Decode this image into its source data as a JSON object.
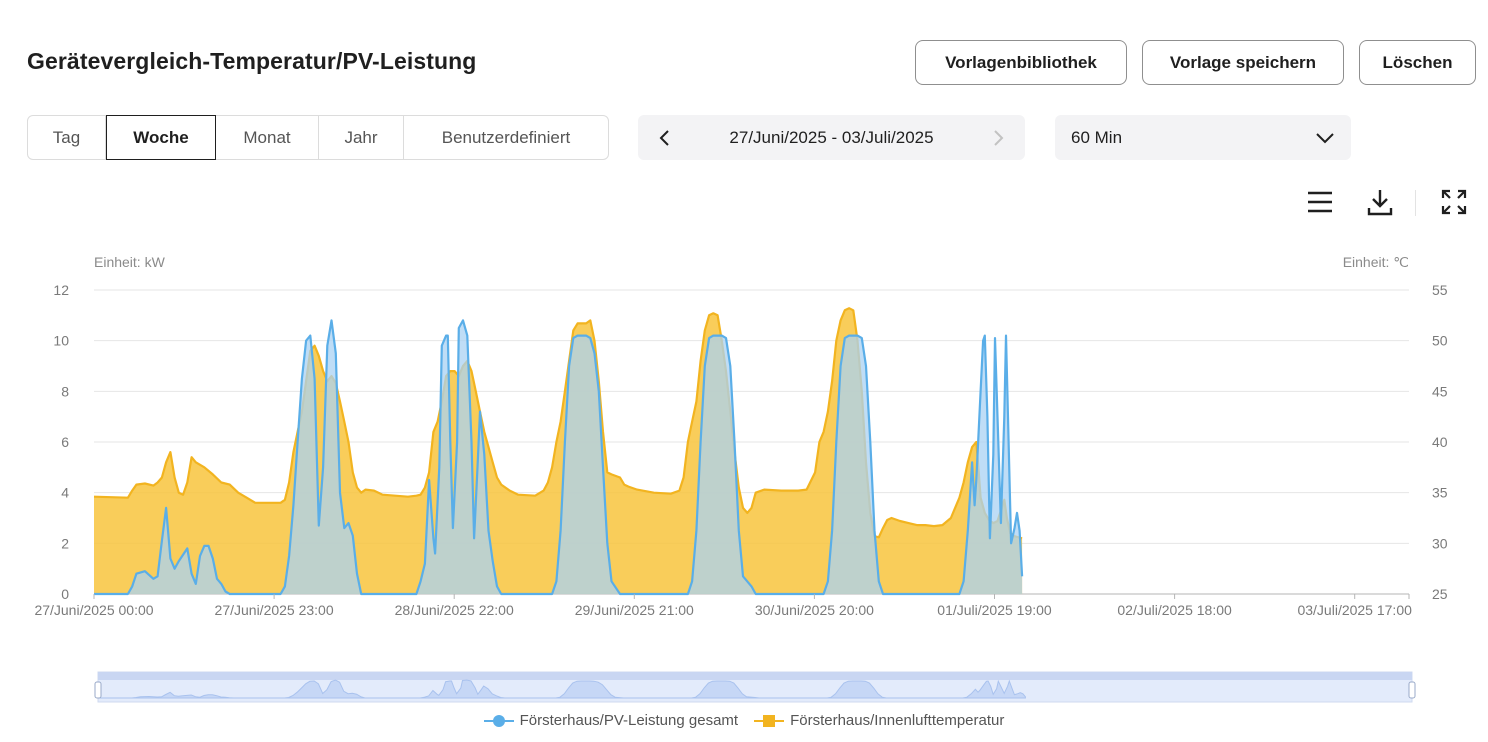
{
  "header": {
    "title": "Gerätevergleich-Temperatur/PV-Leistung",
    "buttons": {
      "library": "Vorlagenbibliothek",
      "save": "Vorlage speichern",
      "delete": "Löschen"
    }
  },
  "period_tabs": [
    {
      "label": "Tag",
      "active": false
    },
    {
      "label": "Woche",
      "active": true
    },
    {
      "label": "Monat",
      "active": false
    },
    {
      "label": "Jahr",
      "active": false
    },
    {
      "label": "Benutzerdefiniert",
      "active": false
    }
  ],
  "date_range": {
    "label": "27/Juni/2025 - 03/Juli/2025"
  },
  "interval": {
    "selected": "60 Min"
  },
  "toolbar": {
    "icons": [
      "menu-icon",
      "download-icon",
      "fullscreen-icon"
    ]
  },
  "chart_data": {
    "type": "area",
    "left_unit": "Einheit: kW",
    "right_unit": "Einheit: ℃",
    "left_axis": {
      "min": 0,
      "max": 12,
      "ticks": [
        0,
        2,
        4,
        6,
        8,
        10,
        12
      ]
    },
    "right_axis": {
      "min": 25,
      "max": 55,
      "ticks": [
        25,
        30,
        35,
        40,
        45,
        50,
        55
      ]
    },
    "x_range_hours": [
      0,
      155
    ],
    "x_tick_labels": [
      "27/Juni/2025 00:00",
      "27/Juni/2025 23:00",
      "28/Juni/2025 22:00",
      "29/Juni/2025 21:00",
      "30/Juni/2025 20:00",
      "01/Juli/2025 19:00",
      "02/Juli/2025 18:00",
      "03/Juli/2025 17:00"
    ],
    "grid": true,
    "legend_position": "bottom-center",
    "series": [
      {
        "name": "Försterhaus/PV-Leistung gesamt",
        "color": "#5aaee8",
        "fill": "#a9d2f3",
        "axis": "left",
        "points": [
          [
            0,
            0
          ],
          [
            4,
            0
          ],
          [
            4.5,
            0.3
          ],
          [
            5,
            0.8
          ],
          [
            6,
            0.9
          ],
          [
            7,
            0.6
          ],
          [
            7.5,
            0.7
          ],
          [
            8,
            2.1
          ],
          [
            8.5,
            3.4
          ],
          [
            9,
            1.4
          ],
          [
            9.5,
            1.0
          ],
          [
            10,
            1.3
          ],
          [
            11,
            1.8
          ],
          [
            11.5,
            0.8
          ],
          [
            12,
            0.4
          ],
          [
            12.5,
            1.5
          ],
          [
            13,
            1.9
          ],
          [
            13.5,
            1.9
          ],
          [
            14,
            1.4
          ],
          [
            14.5,
            0.6
          ],
          [
            15,
            0.4
          ],
          [
            15.5,
            0.1
          ],
          [
            16,
            0
          ],
          [
            22,
            0
          ],
          [
            22.5,
            0.3
          ],
          [
            23,
            1.5
          ],
          [
            23.5,
            3.5
          ],
          [
            24,
            6
          ],
          [
            24.5,
            8.5
          ],
          [
            25,
            10
          ],
          [
            25.5,
            10.2
          ],
          [
            26,
            8.5
          ],
          [
            26.5,
            2.7
          ],
          [
            27,
            5
          ],
          [
            27.5,
            9.8
          ],
          [
            28,
            10.8
          ],
          [
            28.5,
            9.5
          ],
          [
            29,
            4
          ],
          [
            29.5,
            2.6
          ],
          [
            30,
            2.8
          ],
          [
            30.5,
            2.3
          ],
          [
            31,
            0.8
          ],
          [
            31.5,
            0
          ],
          [
            38,
            0
          ],
          [
            38.5,
            0.5
          ],
          [
            39,
            1.2
          ],
          [
            39.5,
            4.5
          ],
          [
            40,
            2.2
          ],
          [
            40.2,
            1.6
          ],
          [
            40.7,
            5
          ],
          [
            41,
            9.8
          ],
          [
            41.5,
            10.2
          ],
          [
            41.7,
            10.2
          ],
          [
            42,
            6
          ],
          [
            42.3,
            2.6
          ],
          [
            42.8,
            6
          ],
          [
            43,
            10.5
          ],
          [
            43.5,
            10.8
          ],
          [
            44,
            10.2
          ],
          [
            44.5,
            6
          ],
          [
            44.8,
            2.2
          ],
          [
            45.2,
            5
          ],
          [
            45.5,
            7.2
          ],
          [
            46,
            5.5
          ],
          [
            46.5,
            2.5
          ],
          [
            47,
            1.3
          ],
          [
            47.5,
            0.3
          ],
          [
            48,
            0
          ],
          [
            54,
            0
          ],
          [
            54.5,
            0.5
          ],
          [
            55,
            2.5
          ],
          [
            55.5,
            6
          ],
          [
            56,
            9
          ],
          [
            56.5,
            10.1
          ],
          [
            57,
            10.2
          ],
          [
            58,
            10.2
          ],
          [
            58.5,
            10.1
          ],
          [
            59,
            9.5
          ],
          [
            59.5,
            8
          ],
          [
            60,
            5
          ],
          [
            60.5,
            2
          ],
          [
            61,
            0.5
          ],
          [
            62,
            0
          ],
          [
            70,
            0
          ],
          [
            70.5,
            0.5
          ],
          [
            71,
            2.5
          ],
          [
            71.5,
            6
          ],
          [
            72,
            9
          ],
          [
            72.5,
            10.1
          ],
          [
            73,
            10.2
          ],
          [
            74,
            10.2
          ],
          [
            74.5,
            10.1
          ],
          [
            75,
            9
          ],
          [
            75.5,
            6
          ],
          [
            76,
            2.5
          ],
          [
            76.5,
            0.7
          ],
          [
            77.5,
            0.3
          ],
          [
            78,
            0
          ],
          [
            86,
            0
          ],
          [
            86.5,
            0.5
          ],
          [
            87,
            2.5
          ],
          [
            87.5,
            6
          ],
          [
            88,
            9
          ],
          [
            88.5,
            10.1
          ],
          [
            89,
            10.2
          ],
          [
            90,
            10.2
          ],
          [
            90.5,
            10.1
          ],
          [
            91,
            9
          ],
          [
            91.5,
            6
          ],
          [
            92,
            2.5
          ],
          [
            92.5,
            0.5
          ],
          [
            93,
            0
          ],
          [
            102,
            0
          ],
          [
            102.5,
            0.5
          ],
          [
            103,
            2.5
          ],
          [
            103.5,
            5.2
          ],
          [
            103.8,
            3.5
          ],
          [
            104,
            4.5
          ],
          [
            104.5,
            8
          ],
          [
            104.8,
            10
          ],
          [
            105,
            10.2
          ],
          [
            105.3,
            7
          ],
          [
            105.6,
            2.2
          ],
          [
            106,
            5.5
          ],
          [
            106.2,
            10.1
          ],
          [
            106.5,
            7
          ],
          [
            106.9,
            2.8
          ],
          [
            107.3,
            7
          ],
          [
            107.5,
            10.2
          ],
          [
            107.8,
            6
          ],
          [
            108.1,
            2
          ],
          [
            108.5,
            2.6
          ],
          [
            108.8,
            3.2
          ],
          [
            109.1,
            2.5
          ],
          [
            109.4,
            0.7
          ]
        ]
      },
      {
        "name": "Försterhaus/Innenlufttemperatur",
        "color": "#f2b420",
        "fill": "#f8c43d",
        "axis": "right",
        "points": [
          [
            0,
            34.6
          ],
          [
            4,
            34.5
          ],
          [
            4.5,
            35.2
          ],
          [
            5,
            35.8
          ],
          [
            6,
            35.9
          ],
          [
            7,
            35.7
          ],
          [
            7.5,
            36
          ],
          [
            8,
            36.5
          ],
          [
            8.5,
            38
          ],
          [
            9,
            39
          ],
          [
            9.5,
            36.5
          ],
          [
            10,
            35
          ],
          [
            10.5,
            34.8
          ],
          [
            11,
            36
          ],
          [
            11.5,
            38.5
          ],
          [
            12,
            38
          ],
          [
            13,
            37.5
          ],
          [
            14,
            36.8
          ],
          [
            15,
            36
          ],
          [
            16,
            35.8
          ],
          [
            17,
            35
          ],
          [
            18,
            34.5
          ],
          [
            19,
            34
          ],
          [
            22,
            34
          ],
          [
            22.5,
            34.3
          ],
          [
            23,
            36
          ],
          [
            23.5,
            39
          ],
          [
            24,
            41
          ],
          [
            24.5,
            43
          ],
          [
            25,
            46
          ],
          [
            25.5,
            49
          ],
          [
            26,
            49.5
          ],
          [
            26.5,
            48.5
          ],
          [
            27,
            47
          ],
          [
            27.5,
            46
          ],
          [
            28,
            46.5
          ],
          [
            28.5,
            45.8
          ],
          [
            29,
            44
          ],
          [
            29.5,
            42
          ],
          [
            30,
            40
          ],
          [
            30.5,
            37
          ],
          [
            31,
            35.5
          ],
          [
            31.5,
            35
          ],
          [
            32,
            35.3
          ],
          [
            33,
            35.2
          ],
          [
            34,
            34.8
          ],
          [
            37,
            34.6
          ],
          [
            38,
            34.7
          ],
          [
            38.5,
            34.8
          ],
          [
            39,
            35.5
          ],
          [
            39.5,
            37
          ],
          [
            40,
            41
          ],
          [
            40.5,
            42
          ],
          [
            41,
            44
          ],
          [
            41.5,
            46.5
          ],
          [
            42,
            47
          ],
          [
            42.5,
            47
          ],
          [
            43,
            46.5
          ],
          [
            43.5,
            47.5
          ],
          [
            44,
            48
          ],
          [
            44.5,
            47
          ],
          [
            45,
            45
          ],
          [
            45.5,
            43
          ],
          [
            46,
            41
          ],
          [
            46.5,
            39.5
          ],
          [
            47,
            38
          ],
          [
            47.5,
            36.5
          ],
          [
            48,
            35.8
          ],
          [
            49,
            35.2
          ],
          [
            50,
            34.8
          ],
          [
            52,
            34.7
          ],
          [
            53,
            35.2
          ],
          [
            53.5,
            36
          ],
          [
            54,
            37.5
          ],
          [
            54.5,
            40
          ],
          [
            55,
            42
          ],
          [
            55.5,
            45
          ],
          [
            56,
            48
          ],
          [
            56.5,
            51
          ],
          [
            57,
            51.7
          ],
          [
            58,
            51.7
          ],
          [
            58.5,
            52
          ],
          [
            59,
            50
          ],
          [
            59.5,
            46
          ],
          [
            60,
            41
          ],
          [
            60.5,
            37
          ],
          [
            61,
            36.8
          ],
          [
            62,
            36.5
          ],
          [
            62.5,
            35.8
          ],
          [
            63,
            35.6
          ],
          [
            64,
            35.3
          ],
          [
            66,
            35
          ],
          [
            68,
            34.9
          ],
          [
            69,
            35.2
          ],
          [
            69.5,
            36.5
          ],
          [
            70,
            40
          ],
          [
            70.5,
            42
          ],
          [
            71,
            44
          ],
          [
            71.5,
            48
          ],
          [
            72,
            51
          ],
          [
            72.5,
            52.5
          ],
          [
            73,
            52.7
          ],
          [
            73.5,
            52.5
          ],
          [
            74,
            50
          ],
          [
            74.5,
            47
          ],
          [
            75,
            43
          ],
          [
            75.5,
            39
          ],
          [
            76,
            35.5
          ],
          [
            76.5,
            33.5
          ],
          [
            77,
            33
          ],
          [
            77.5,
            33.5
          ],
          [
            78,
            35
          ],
          [
            79,
            35.3
          ],
          [
            81,
            35.2
          ],
          [
            83,
            35.2
          ],
          [
            84,
            35.3
          ],
          [
            85,
            37
          ],
          [
            85.5,
            40
          ],
          [
            86,
            41
          ],
          [
            86.5,
            43
          ],
          [
            87,
            46
          ],
          [
            87.5,
            50
          ],
          [
            88,
            52
          ],
          [
            88.5,
            53
          ],
          [
            89,
            53.2
          ],
          [
            89.5,
            53
          ],
          [
            90,
            50
          ],
          [
            90.5,
            45
          ],
          [
            91,
            38
          ],
          [
            91.5,
            33
          ],
          [
            92,
            30.7
          ],
          [
            92.5,
            30.6
          ],
          [
            93,
            31.5
          ],
          [
            93.5,
            32.3
          ],
          [
            94,
            32.5
          ],
          [
            95,
            32.2
          ],
          [
            96,
            32
          ],
          [
            97,
            31.8
          ],
          [
            98,
            31.8
          ],
          [
            99,
            31.7
          ],
          [
            100,
            31.8
          ],
          [
            101,
            32.5
          ],
          [
            101.5,
            33.5
          ],
          [
            102,
            34.5
          ],
          [
            102.5,
            36
          ],
          [
            103,
            38
          ],
          [
            103.5,
            39.5
          ],
          [
            104,
            40
          ],
          [
            104.2,
            38
          ],
          [
            104.5,
            34.5
          ],
          [
            105,
            33
          ],
          [
            105.5,
            32.3
          ],
          [
            106,
            32
          ],
          [
            106.5,
            32.2
          ],
          [
            107,
            33.5
          ],
          [
            107.3,
            34.3
          ],
          [
            107.6,
            32.5
          ],
          [
            108,
            31
          ],
          [
            108.5,
            30.7
          ],
          [
            109.4,
            30.5
          ]
        ]
      }
    ]
  },
  "legend": {
    "pv": "Försterhaus/PV-Leistung gesamt",
    "temp": "Försterhaus/Innenlufttemperatur"
  }
}
